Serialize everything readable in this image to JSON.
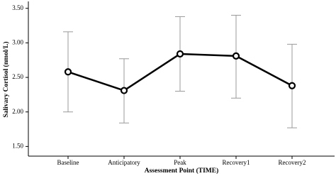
{
  "chart_data": {
    "type": "line",
    "x_label": "Assessment Point (TIME)",
    "y_label": "Salivary Cortisol (nmol/L)",
    "categories": [
      "Baseline",
      "Anticipatory",
      "Peak",
      "Recovery1",
      "Recovery2"
    ],
    "series": [
      {
        "color": "#000000",
        "error_color": "#999999",
        "values": [
          2.58,
          2.31,
          2.84,
          2.81,
          2.38
        ],
        "error_low": [
          2.0,
          1.84,
          2.3,
          2.2,
          1.77
        ],
        "error_high": [
          3.16,
          2.77,
          3.38,
          3.4,
          2.98
        ]
      }
    ],
    "ylim": [
      1.36,
      3.6
    ],
    "yticks": [
      {
        "value": 1.5,
        "label": "1.50"
      },
      {
        "value": 2.0,
        "label": "2.00"
      },
      {
        "value": 2.5,
        "label": "2.50"
      },
      {
        "value": 3.0,
        "label": "3.00"
      },
      {
        "value": 3.5,
        "label": "3.50"
      }
    ]
  }
}
